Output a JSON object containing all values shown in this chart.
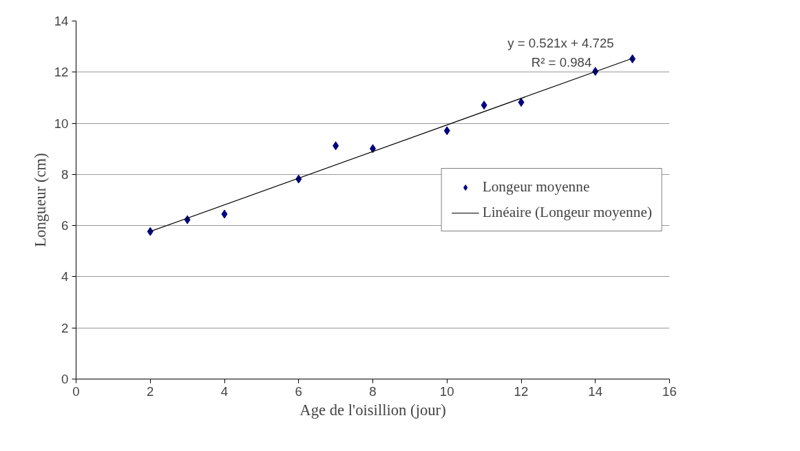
{
  "chart_data": {
    "type": "scatter",
    "xlabel": "Age de l'oisillion (jour)",
    "ylabel": "Longueur (cm)",
    "xlim": [
      0,
      16
    ],
    "xticks": [
      0,
      2,
      4,
      6,
      8,
      10,
      12,
      14,
      16
    ],
    "ylim": [
      0,
      14
    ],
    "yticks": [
      0,
      2,
      4,
      6,
      8,
      10,
      12,
      14
    ],
    "grid": "y",
    "legend": "right",
    "series": [
      {
        "name": "Longeur moyenne",
        "marker": "diamond",
        "color": "#000080",
        "x": [
          2,
          3,
          4,
          6,
          7,
          8,
          10,
          11,
          12,
          14,
          15
        ],
        "values": [
          5.77,
          6.23,
          6.45,
          7.82,
          9.12,
          9.01,
          9.71,
          10.71,
          10.82,
          12.03,
          12.52
        ]
      },
      {
        "name": "Linéaire (Longeur moyenne)",
        "type": "line",
        "color": "#000000",
        "line_style": "solid",
        "x": [
          2,
          15
        ],
        "values": [
          5.77,
          12.54
        ]
      }
    ],
    "annotations": [
      "y = 0.521x + 4.725",
      "R² = 0.984"
    ]
  }
}
